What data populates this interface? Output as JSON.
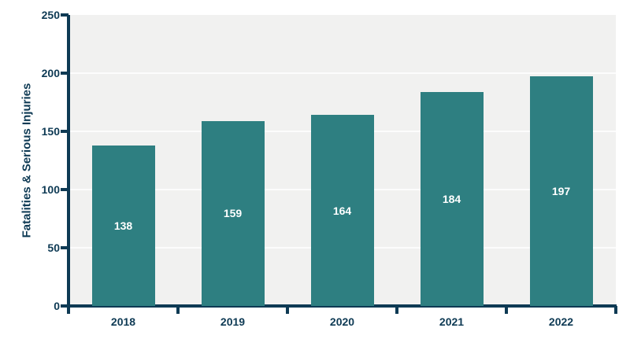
{
  "chart_data": {
    "type": "bar",
    "categories": [
      "2018",
      "2019",
      "2020",
      "2021",
      "2022"
    ],
    "values": [
      138,
      159,
      164,
      184,
      197
    ],
    "value_labels": [
      "138",
      "159",
      "164",
      "184",
      "197"
    ],
    "title": "",
    "xlabel": "",
    "ylabel": "Fatalities & Serious Injuries",
    "ylim": [
      0,
      250
    ],
    "yticks": [
      0,
      50,
      100,
      150,
      200,
      250
    ],
    "grid": "horizontal-white-gridlines",
    "legend": "none",
    "colors": {
      "bar": "#2E7F81",
      "axis": "#0E3A54",
      "plot_background": "#F1F1F0",
      "gridline": "#FCFCFC",
      "bar_label": "#FFFFFF"
    }
  }
}
